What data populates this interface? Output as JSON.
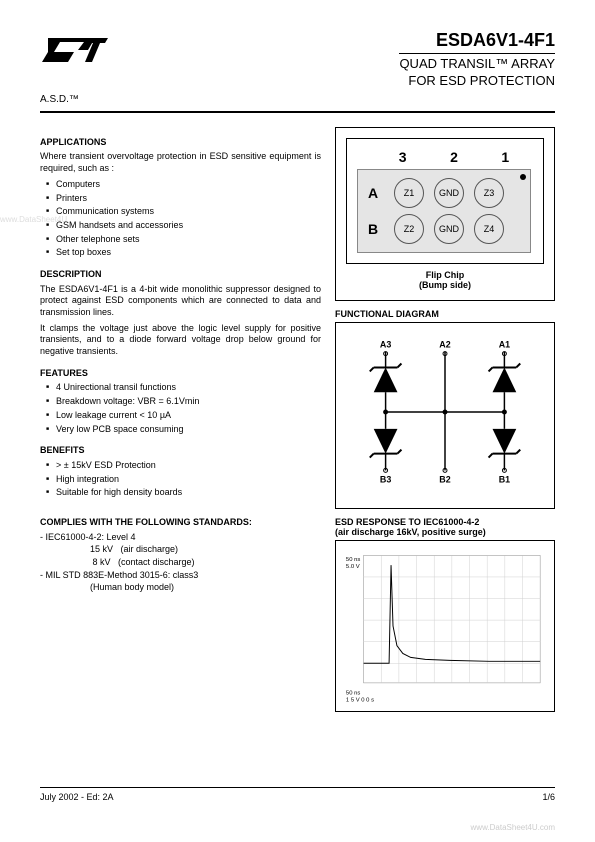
{
  "header": {
    "part_number": "ESDA6V1-4F1",
    "subtitle_line1": "QUAD TRANSIL™ ARRAY",
    "subtitle_line2": "FOR ESD PROTECTION",
    "asd": "A.S.D.™"
  },
  "applications": {
    "title": "APPLICATIONS",
    "intro": "Where transient overvoltage protection in ESD sensitive equipment is required, such as :",
    "items": [
      "Computers",
      "Printers",
      "Communication systems",
      "GSM handsets and accessories",
      "Other telephone sets",
      "Set top boxes"
    ]
  },
  "description": {
    "title": "DESCRIPTION",
    "p1": "The ESDA6V1-4F1 is a 4-bit wide monolithic suppressor designed to protect against ESD components which are connected to data and transmission lines.",
    "p2": "It clamps the voltage just above the logic level supply for positive transients, and to a diode forward voltage drop below ground for negative transients."
  },
  "features": {
    "title": "FEATURES",
    "items": [
      "4 Unirectional transil functions",
      "Breakdown voltage: VBR = 6.1Vmin",
      "Low leakage current < 10 µA",
      "Very low PCB space consuming"
    ]
  },
  "benefits": {
    "title": "BENEFITS",
    "items": [
      "> ± 15kV ESD Protection",
      "High integration",
      "Suitable for high density boards"
    ]
  },
  "standards": {
    "title": "COMPLIES WITH THE FOLLOWING STANDARDS:",
    "rows": [
      "- IEC61000-4-2: Level 4",
      "                    15 kV   (air discharge)",
      "                     8 kV   (contact discharge)",
      "- MIL STD 883E-Method 3015-6: class3",
      "                    (Human body model)"
    ]
  },
  "flip_chip": {
    "cols": [
      "3",
      "2",
      "1"
    ],
    "rows": [
      {
        "label": "A",
        "pads": [
          "Z1",
          "GND",
          "Z3"
        ]
      },
      {
        "label": "B",
        "pads": [
          "Z2",
          "GND",
          "Z4"
        ]
      }
    ],
    "caption_line1": "Flip Chip",
    "caption_line2": "(Bump side)"
  },
  "functional": {
    "title": "FUNCTIONAL DIAGRAM",
    "top_labels": [
      "A3",
      "A2",
      "A1"
    ],
    "bottom_labels": [
      "B3",
      "B2",
      "B1"
    ]
  },
  "esd": {
    "title_line1": "ESD RESPONSE TO IEC61000-4-2",
    "title_line2": "(air discharge 16kV, positive surge)",
    "graph": {
      "bg": "#ffffff",
      "grid": "#d0d0d0",
      "trace": "#000000",
      "xlim": [
        0,
        200
      ],
      "ylim": [
        -1,
        5
      ],
      "spike_x": 30,
      "spike_y": 4.2,
      "settle_y": 0.4,
      "label_tl": "50 ns\n5.0 V",
      "label_bl": "50 ns\n1 5 V  0 0 s"
    }
  },
  "footer": {
    "left": "July  2002 - Ed: 2A",
    "right": "1/6"
  },
  "watermarks": {
    "left": "www.DataSheet4U",
    "bottom": "www.DataSheet4U.com"
  },
  "colors": {
    "text": "#000000",
    "chip_bg": "#e5e5e5",
    "border": "#000000"
  }
}
